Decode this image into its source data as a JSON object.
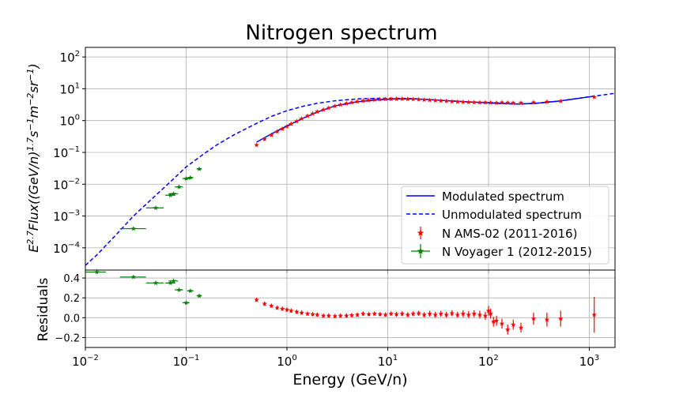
{
  "chart_data": [
    {
      "type": "scatter",
      "panel": "top",
      "title": "Nitrogen spectrum",
      "ylabel_base": "E",
      "ylabel_base_sup": "2.7",
      "ylabel_mid": "Flux((GeV/n)",
      "ylabel_mid_sup": "1.7",
      "ylabel_s": "s",
      "ylabel_s_sup": "−1",
      "ylabel_m": "m",
      "ylabel_m_sup": "−2",
      "ylabel_sr": "sr",
      "ylabel_sr_sup": "−1",
      "ylabel_end": ")",
      "x_scale": "log",
      "y_scale": "log",
      "xlim": [
        0.01,
        1800
      ],
      "ylim": [
        2e-05,
        200
      ],
      "grid": true,
      "legend_position": "lower-right",
      "y_ticks": [
        {
          "value": 0.0001,
          "mantissa": "10",
          "exp": "−4"
        },
        {
          "value": 0.001,
          "mantissa": "10",
          "exp": "−3"
        },
        {
          "value": 0.01,
          "mantissa": "10",
          "exp": "−2"
        },
        {
          "value": 0.1,
          "mantissa": "10",
          "exp": "−1"
        },
        {
          "value": 1,
          "mantissa": "10",
          "exp": "0"
        },
        {
          "value": 10,
          "mantissa": "10",
          "exp": "1"
        },
        {
          "value": 100,
          "mantissa": "10",
          "exp": "2"
        }
      ],
      "series": [
        {
          "name": "Modulated spectrum",
          "kind": "line",
          "style": "solid",
          "color": "#0000ff",
          "x": [
            0.5,
            0.7,
            1,
            1.5,
            2,
            3,
            5,
            8,
            12,
            18,
            25,
            40,
            60,
            100,
            150,
            200,
            300,
            500,
            1100
          ],
          "y": [
            0.21,
            0.38,
            0.68,
            1.25,
            1.85,
            2.9,
            3.9,
            4.5,
            4.8,
            4.8,
            4.6,
            4.2,
            3.9,
            3.6,
            3.4,
            3.3,
            3.5,
            4.1,
            5.8
          ]
        },
        {
          "name": "Unmodulated spectrum",
          "kind": "line",
          "style": "dashed",
          "color": "#0000ff",
          "x": [
            0.01,
            0.013,
            0.02,
            0.03,
            0.05,
            0.07,
            0.1,
            0.15,
            0.2,
            0.3,
            0.5,
            0.7,
            1,
            1.5,
            2,
            3,
            5,
            8,
            12,
            18,
            25,
            40,
            60,
            100,
            150,
            200,
            300,
            500,
            1000,
            1800
          ],
          "y": [
            2.8e-05,
            6e-05,
            0.00025,
            0.001,
            0.0045,
            0.012,
            0.035,
            0.09,
            0.17,
            0.36,
            0.82,
            1.35,
            2.05,
            2.9,
            3.5,
            4.2,
            4.8,
            5.0,
            5.05,
            4.9,
            4.6,
            4.2,
            3.9,
            3.6,
            3.4,
            3.3,
            3.5,
            4.1,
            5.6,
            7.2
          ]
        },
        {
          "name": "N AMS-02 (2011-2016)",
          "kind": "points",
          "color": "#ff0000",
          "x": [
            0.5,
            0.6,
            0.7,
            0.8,
            0.9,
            1.0,
            1.1,
            1.25,
            1.4,
            1.6,
            1.8,
            2.0,
            2.3,
            2.6,
            3.0,
            3.4,
            3.9,
            4.4,
            5.0,
            5.7,
            6.5,
            7.4,
            8.4,
            9.5,
            10.8,
            12.2,
            13.9,
            15.8,
            17.9,
            20.3,
            23,
            26.1,
            29.7,
            33.7,
            38.2,
            43.4,
            49.3,
            56,
            63.5,
            72,
            82,
            93,
            105,
            120,
            136,
            155,
            176,
            210,
            280,
            380,
            520,
            1120
          ],
          "y": [
            0.17,
            0.26,
            0.35,
            0.45,
            0.55,
            0.65,
            0.78,
            0.95,
            1.15,
            1.4,
            1.65,
            1.9,
            2.2,
            2.5,
            2.85,
            3.15,
            3.45,
            3.7,
            3.95,
            4.15,
            4.35,
            4.5,
            4.6,
            4.7,
            4.75,
            4.8,
            4.8,
            4.75,
            4.7,
            4.6,
            4.5,
            4.4,
            4.3,
            4.2,
            4.1,
            4.0,
            3.9,
            3.85,
            3.8,
            3.75,
            3.7,
            3.7,
            3.65,
            3.6,
            3.7,
            3.65,
            3.6,
            3.6,
            3.7,
            3.9,
            4.1,
            5.5
          ]
        },
        {
          "name": "N Voyager 1 (2012-2015)",
          "kind": "points",
          "color": "#008000",
          "x": [
            0.013,
            0.03,
            0.05,
            0.07,
            0.075,
            0.085,
            0.1,
            0.11,
            0.135
          ],
          "xerr_low": [
            0.003,
            0.008,
            0.01,
            0.008,
            0.008,
            0.008,
            0.008,
            0.008,
            0.008
          ],
          "xerr_high": [
            0.003,
            0.01,
            0.01,
            0.008,
            0.008,
            0.008,
            0.008,
            0.008,
            0.008
          ],
          "y": [
            1.8e-05,
            0.0004,
            0.0018,
            0.0045,
            0.005,
            0.0082,
            0.015,
            0.016,
            0.03
          ]
        }
      ]
    },
    {
      "type": "scatter",
      "panel": "bottom",
      "xlabel": "Energy (GeV/n)",
      "ylabel": "Residuals",
      "x_scale": "log",
      "xlim": [
        0.01,
        1800
      ],
      "ylim": [
        -0.3,
        0.48
      ],
      "grid": true,
      "x_ticks": [
        {
          "value": 0.01,
          "mantissa": "10",
          "exp": "−2"
        },
        {
          "value": 0.1,
          "mantissa": "10",
          "exp": "−1"
        },
        {
          "value": 1,
          "mantissa": "10",
          "exp": "0"
        },
        {
          "value": 10,
          "mantissa": "10",
          "exp": "1"
        },
        {
          "value": 100,
          "mantissa": "10",
          "exp": "2"
        },
        {
          "value": 1000,
          "mantissa": "10",
          "exp": "3"
        }
      ],
      "y_ticks": [
        {
          "value": -0.2,
          "label": "−0.2"
        },
        {
          "value": 0.0,
          "label": "0.0"
        },
        {
          "value": 0.2,
          "label": "0.2"
        },
        {
          "value": 0.4,
          "label": "0.4"
        }
      ],
      "series": [
        {
          "name": "N AMS-02 (2011-2016)",
          "color": "#ff0000",
          "x": [
            0.5,
            0.6,
            0.7,
            0.8,
            0.9,
            1.0,
            1.1,
            1.25,
            1.4,
            1.6,
            1.8,
            2.0,
            2.3,
            2.6,
            3.0,
            3.4,
            3.9,
            4.4,
            5.0,
            5.7,
            6.5,
            7.4,
            8.4,
            9.5,
            10.8,
            12.2,
            13.9,
            15.8,
            17.9,
            20.3,
            23,
            26.1,
            29.7,
            33.7,
            38.2,
            43.4,
            49.3,
            56,
            63.5,
            72,
            82,
            93,
            100,
            105,
            112,
            120,
            136,
            155,
            176,
            210,
            280,
            380,
            520,
            1120
          ],
          "y": [
            0.18,
            0.14,
            0.12,
            0.1,
            0.09,
            0.08,
            0.07,
            0.06,
            0.05,
            0.04,
            0.035,
            0.03,
            0.02,
            0.02,
            0.015,
            0.02,
            0.02,
            0.025,
            0.03,
            0.04,
            0.035,
            0.04,
            0.035,
            0.03,
            0.04,
            0.035,
            0.04,
            0.03,
            0.04,
            0.045,
            0.03,
            0.04,
            0.03,
            0.04,
            0.03,
            0.045,
            0.03,
            0.04,
            0.03,
            0.04,
            0.03,
            0.02,
            0.07,
            0.04,
            -0.04,
            -0.03,
            -0.06,
            -0.12,
            -0.07,
            -0.1,
            -0.01,
            -0.02,
            -0.01,
            0.03
          ],
          "yerr": [
            0.02,
            0.02,
            0.02,
            0.02,
            0.02,
            0.02,
            0.02,
            0.02,
            0.02,
            0.02,
            0.02,
            0.02,
            0.02,
            0.02,
            0.02,
            0.02,
            0.02,
            0.02,
            0.02,
            0.02,
            0.02,
            0.02,
            0.02,
            0.02,
            0.02,
            0.025,
            0.025,
            0.025,
            0.025,
            0.025,
            0.025,
            0.03,
            0.03,
            0.03,
            0.03,
            0.03,
            0.03,
            0.035,
            0.035,
            0.035,
            0.04,
            0.04,
            0.05,
            0.05,
            0.05,
            0.05,
            0.05,
            0.05,
            0.05,
            0.05,
            0.06,
            0.07,
            0.08,
            0.18
          ]
        },
        {
          "name": "N Voyager 1 (2012-2015)",
          "color": "#008000",
          "x": [
            0.013,
            0.03,
            0.05,
            0.07,
            0.075,
            0.085,
            0.1,
            0.11,
            0.135
          ],
          "xerr_low": [
            0.003,
            0.008,
            0.01,
            0.008,
            0.008,
            0.008,
            0.008,
            0.008,
            0.008
          ],
          "xerr_high": [
            0.003,
            0.01,
            0.01,
            0.008,
            0.008,
            0.008,
            0.008,
            0.008,
            0.008
          ],
          "y": [
            0.46,
            0.41,
            0.35,
            0.35,
            0.37,
            0.28,
            0.15,
            0.27,
            0.22
          ]
        }
      ]
    }
  ]
}
